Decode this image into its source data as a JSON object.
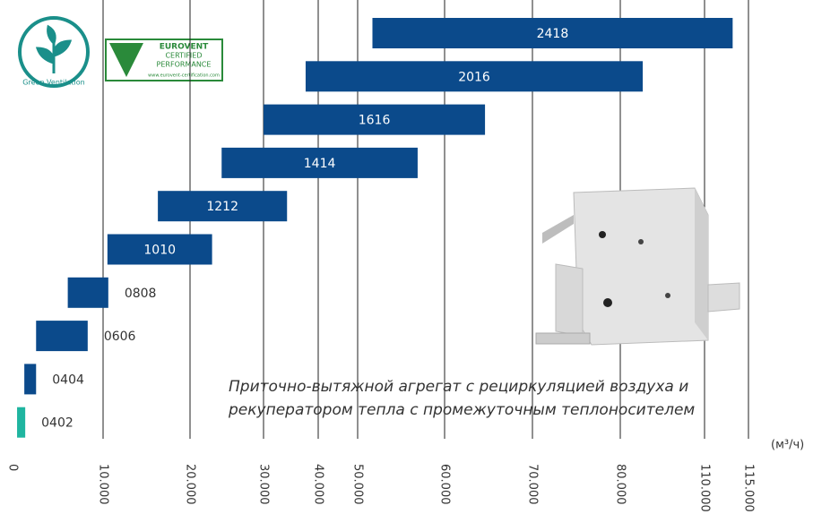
{
  "chart_data": {
    "type": "range-bar",
    "categories": [
      "0402",
      "0404",
      "0606",
      "0808",
      "1010",
      "1212",
      "1414",
      "1616",
      "2016",
      "2418"
    ],
    "start": [
      500,
      1300,
      2600,
      6100,
      10500,
      16300,
      24300,
      30000,
      37700,
      51700
    ],
    "end": [
      1400,
      2600,
      8300,
      10600,
      23000,
      34300,
      56900,
      64600,
      88000,
      113200
    ],
    "colors": [
      "#1fb5a0",
      "#0b4a8b",
      "#0b4a8b",
      "#0b4a8b",
      "#0b4a8b",
      "#0b4a8b",
      "#0b4a8b",
      "#0b4a8b",
      "#0b4a8b",
      "#0b4a8b"
    ],
    "xlim": [
      0,
      115000
    ],
    "xticks": [
      0,
      {
        "value": 10000,
        "label": "10.000"
      },
      {
        "value": 20000,
        "label": "20.000"
      },
      {
        "value": 30000,
        "label": "30.000"
      },
      {
        "value": 40000,
        "label": "40.000"
      },
      {
        "value": 50000,
        "label": "50.000"
      },
      {
        "value": 60000,
        "label": "60.000"
      },
      {
        "value": 70000,
        "label": "70.000"
      },
      {
        "value": 80000,
        "label": "80.000"
      },
      {
        "value": 110000,
        "label": "110.000"
      },
      {
        "value": 115000,
        "label": "115.000"
      }
    ],
    "x_label": "(м³/ч)",
    "grid": true,
    "annotation": [
      "Приточно-вытяжной агрегат с рециркуляцией воздуха и",
      "рекуператором тепла с промежуточным теплоносителем"
    ],
    "logos": {
      "green": "Green Ventilation",
      "eurovent": [
        "EUROVENT",
        "CERTIFIED",
        "PERFORMANCE",
        "www.eurovent-certification.com"
      ]
    }
  }
}
